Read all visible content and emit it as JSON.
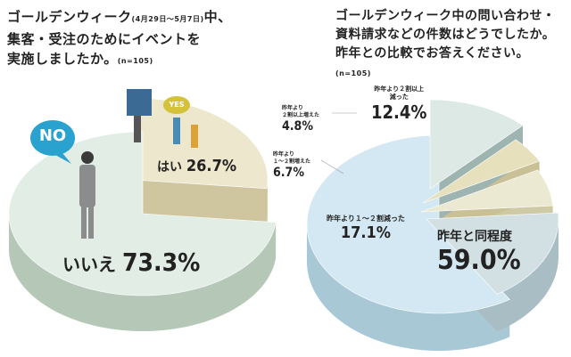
{
  "chart_data": [
    {
      "type": "pie",
      "title": "ゴールデンウィーク(4月29日〜5月7日)中、集客・受注のためにイベントを実施しましたか。",
      "title_line1": "ゴールデンウィーク",
      "title_period": "(4月29日〜5月7日)",
      "title_line1_end": "中、",
      "title_line2": "集客・受注のためにイベントを",
      "title_line3": "実施しましたか。",
      "sample": "(n=105)",
      "categories": [
        "はい",
        "いいえ"
      ],
      "values": [
        26.7,
        73.3
      ],
      "value_labels": [
        "26.7%",
        "73.3%"
      ],
      "colors": {
        "top": [
          "#ede7cd",
          "#e2ede5"
        ],
        "side": [
          "#cfc6a0",
          "#b5c8b8"
        ]
      },
      "callouts": {
        "no": "NO",
        "yes": "YES"
      }
    },
    {
      "type": "pie",
      "title": "ゴールデンウィーク中の問い合わせ・資料請求などの件数はどうでしたか。昨年との比較でお答えください。",
      "title_line1": "ゴールデンウィーク中の問い合わせ・",
      "title_line2": "資料請求などの件数はどうでしたか。",
      "title_line3": "昨年との比較でお答えください。",
      "sample": "(n=105)",
      "categories": [
        "昨年と同程度",
        "昨年より1〜2割減った",
        "昨年より1〜2割増えた",
        "昨年より2割以上増えた",
        "昨年より2割以上減った"
      ],
      "values": [
        59.0,
        17.1,
        6.7,
        4.8,
        12.4
      ],
      "value_labels": [
        "59.0%",
        "17.1%",
        "6.7%",
        "4.8%",
        "12.4%"
      ],
      "label_lines": [
        [
          "昨年と同程度"
        ],
        [
          "昨年より１〜２割減った"
        ],
        [
          "昨年より",
          "１〜２割増えた"
        ],
        [
          "昨年より",
          "２割以上増えた"
        ],
        [
          "昨年より２割以上",
          "減った"
        ]
      ],
      "colors": {
        "top": [
          "#d3e8f2",
          "#d2e0e4",
          "#ece9d3",
          "#e6e0bd",
          "#dde9e5"
        ],
        "side": [
          "#a9c8d6",
          "#a9bec4",
          "#cfcaa6",
          "#c9c096",
          "#9eb4b1"
        ]
      }
    }
  ]
}
